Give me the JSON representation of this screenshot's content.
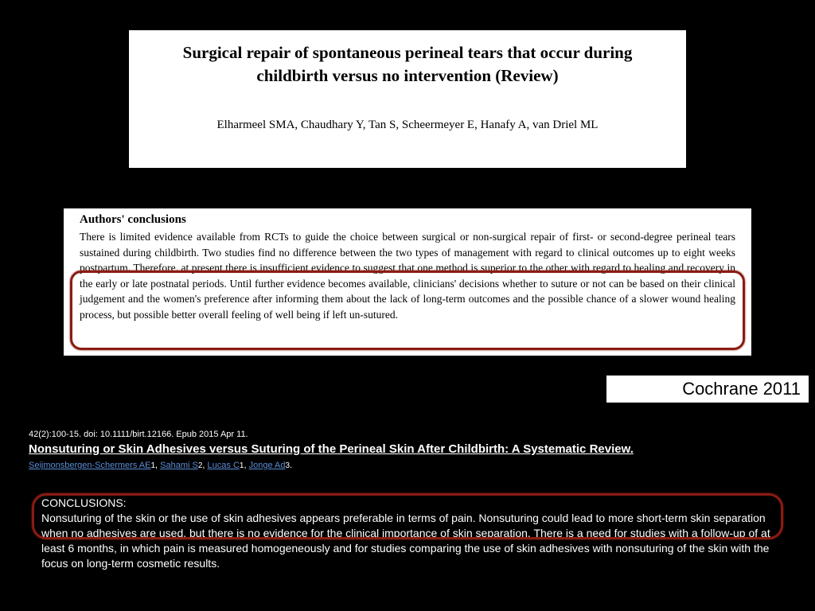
{
  "review_panel": {
    "title": "Surgical repair of spontaneous perineal tears that occur during childbirth versus no intervention (Review)",
    "authors": "Elharmeel SMA, Chaudhary Y, Tan S, Scheermeyer E, Hanafy A, van Driel ML"
  },
  "conclusions_panel": {
    "heading": "Authors' conclusions",
    "body": "There is limited evidence available from RCTs to guide the choice between surgical or non-surgical repair of first- or second-degree perineal tears sustained during childbirth. Two studies find no difference between the two types of management with regard to clinical outcomes up to eight weeks postpartum. Therefore, at present there is insufficient evidence to suggest that one method is superior to the other with regard to healing and recovery in the early or late postnatal periods. Until further evidence becomes available, clinicians' decisions whether to suture or not can be based on their clinical judgement and the women's preference after informing them about the lack of long-term outcomes and the possible chance of a slower wound healing process, but possible better overall feeling of well being if left un-sutured."
  },
  "source_label": "Cochrane 2011",
  "citation": {
    "meta": "42(2):100-15. doi: 10.1111/birt.12166. Epub 2015 Apr 11.",
    "title": "Nonsuturing or Skin Adhesives versus Suturing of the Perineal Skin After Childbirth: A Systematic Review.",
    "authors": [
      {
        "name": "Seijmonsbergen-Schermers AE",
        "sup": "1"
      },
      {
        "name": "Sahami S",
        "sup": "2"
      },
      {
        "name": "Lucas C",
        "sup": "1"
      },
      {
        "name": "Jonge Ad",
        "sup": "3"
      }
    ]
  },
  "bottom_conclusions": {
    "heading": "CONCLUSIONS:",
    "body": "Nonsuturing of the skin or the use of skin adhesives appears preferable in terms of pain. Nonsuturing could lead to more short-term skin separation when no adhesives are used, but there is no evidence for the clinical importance of skin separation. There is a need for studies with a follow-up of at least 6 months, in which pain is measured homogeneously and for studies comparing the use of skin adhesives with nonsuturing of the skin with the focus on long-term cosmetic results."
  },
  "colors": {
    "background": "#000000",
    "panel_bg": "#ffffff",
    "highlight_border": "#8a1c12",
    "link": "#5b8dd6"
  }
}
